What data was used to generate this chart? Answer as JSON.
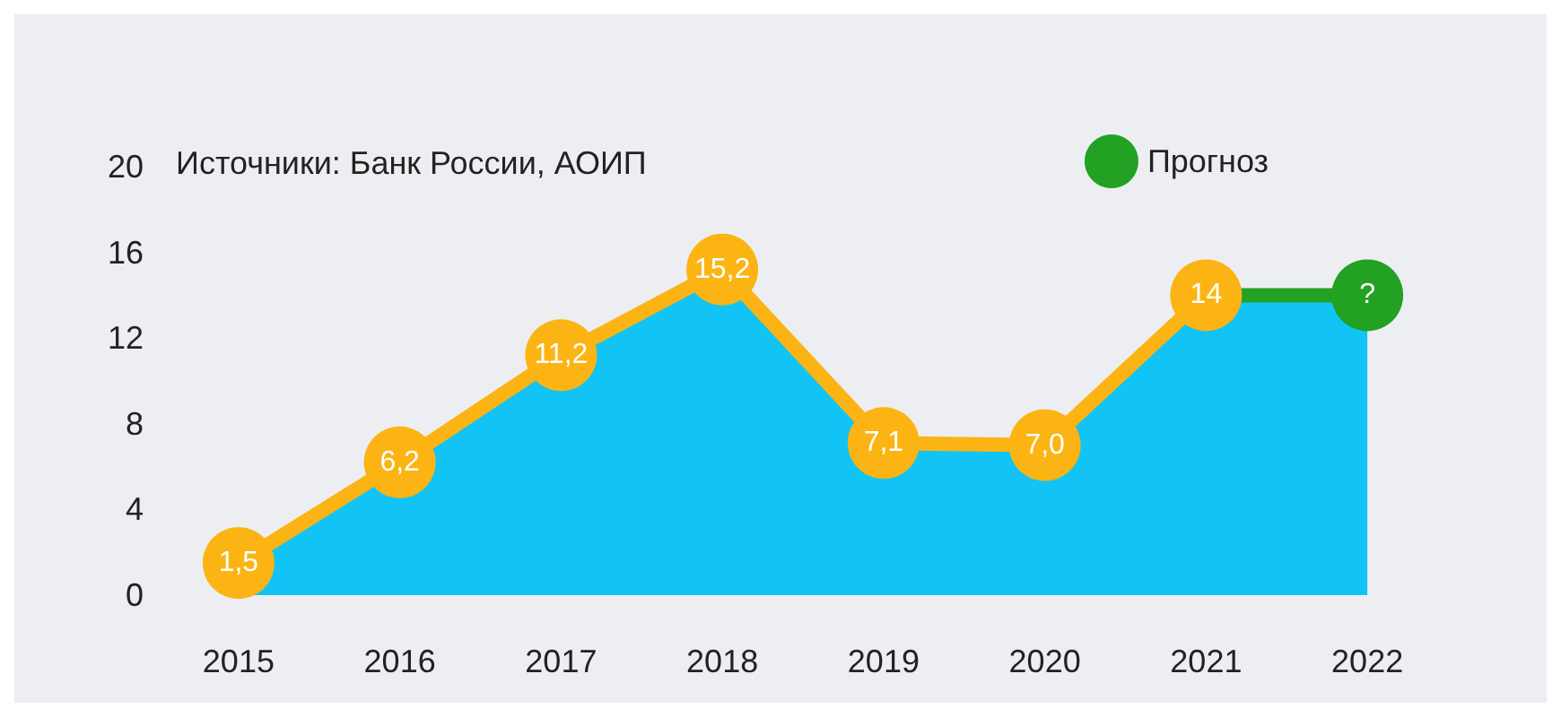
{
  "chart_data": {
    "type": "line",
    "categories": [
      "2015",
      "2016",
      "2017",
      "2018",
      "2019",
      "2020",
      "2021",
      "2022"
    ],
    "series": [
      {
        "type": "area",
        "color": "#11c4f5",
        "values": [
          1.5,
          6.2,
          11.2,
          15.2,
          7.1,
          7.0,
          14,
          14
        ]
      },
      {
        "color": "#fbb414",
        "marker": "circle",
        "values": [
          1.5,
          6.2,
          11.2,
          15.2,
          7.1,
          7.0,
          14,
          null
        ],
        "value_labels": [
          "1,5",
          "6,2",
          "11,2",
          "15,2",
          "7,1",
          "7,0",
          "14",
          null
        ]
      },
      {
        "name": "Прогноз",
        "color": "#22a122",
        "marker": "circle",
        "values": [
          null,
          null,
          null,
          null,
          null,
          null,
          14,
          14
        ],
        "value_labels": [
          null,
          null,
          null,
          null,
          null,
          null,
          null,
          "?"
        ]
      }
    ],
    "ylim": [
      0,
      20
    ],
    "yticks": [
      0,
      4,
      8,
      12,
      16,
      20
    ],
    "annotations": [
      "Источники: Банк России, АОИП"
    ],
    "grid": false,
    "legend": "top right"
  }
}
